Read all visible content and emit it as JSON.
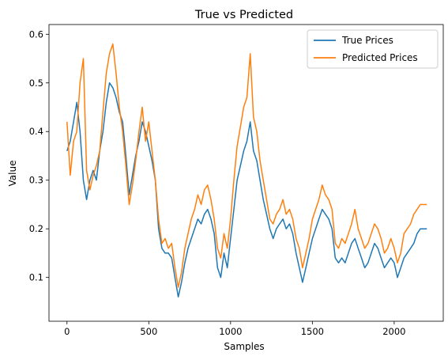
{
  "chart_data": {
    "type": "line",
    "title": "True vs Predicted",
    "xlabel": "Samples",
    "ylabel": "Value",
    "xlim": [
      -110,
      2300
    ],
    "ylim": [
      0.01,
      0.62
    ],
    "xticks": [
      0,
      500,
      1000,
      1500,
      2000
    ],
    "xtick_labels": [
      "0",
      "500",
      "1000",
      "1500",
      "2000"
    ],
    "yticks": [
      0.1,
      0.2,
      0.3,
      0.4,
      0.5,
      0.6
    ],
    "ytick_labels": [
      "0.1",
      "0.2",
      "0.3",
      "0.4",
      "0.5",
      "0.6"
    ],
    "grid": false,
    "legend_position": "top-right",
    "series": [
      {
        "name": "True Prices",
        "color": "#1f77b4",
        "x": [
          0,
          20,
          40,
          60,
          80,
          100,
          120,
          140,
          160,
          180,
          200,
          220,
          240,
          260,
          280,
          300,
          320,
          340,
          360,
          380,
          400,
          420,
          440,
          460,
          480,
          500,
          520,
          540,
          560,
          580,
          600,
          620,
          640,
          660,
          680,
          700,
          720,
          740,
          760,
          780,
          800,
          820,
          840,
          860,
          880,
          900,
          920,
          940,
          960,
          980,
          1000,
          1020,
          1040,
          1060,
          1080,
          1100,
          1120,
          1140,
          1160,
          1180,
          1200,
          1220,
          1240,
          1260,
          1280,
          1300,
          1320,
          1340,
          1360,
          1380,
          1400,
          1420,
          1440,
          1460,
          1480,
          1500,
          1520,
          1540,
          1560,
          1580,
          1600,
          1620,
          1640,
          1660,
          1680,
          1700,
          1720,
          1740,
          1760,
          1780,
          1800,
          1820,
          1840,
          1860,
          1880,
          1900,
          1920,
          1940,
          1960,
          1980,
          2000,
          2020,
          2040,
          2060,
          2080,
          2100,
          2120,
          2140,
          2160,
          2180,
          2200
        ],
        "values": [
          0.36,
          0.38,
          0.42,
          0.46,
          0.4,
          0.3,
          0.26,
          0.3,
          0.32,
          0.3,
          0.36,
          0.4,
          0.46,
          0.5,
          0.49,
          0.47,
          0.44,
          0.42,
          0.35,
          0.27,
          0.31,
          0.35,
          0.38,
          0.42,
          0.4,
          0.37,
          0.34,
          0.3,
          0.2,
          0.16,
          0.15,
          0.15,
          0.14,
          0.1,
          0.06,
          0.09,
          0.13,
          0.16,
          0.18,
          0.2,
          0.22,
          0.21,
          0.23,
          0.24,
          0.22,
          0.19,
          0.12,
          0.1,
          0.15,
          0.12,
          0.18,
          0.24,
          0.3,
          0.33,
          0.36,
          0.38,
          0.42,
          0.36,
          0.34,
          0.3,
          0.26,
          0.23,
          0.2,
          0.18,
          0.2,
          0.21,
          0.22,
          0.2,
          0.21,
          0.19,
          0.15,
          0.12,
          0.09,
          0.12,
          0.15,
          0.18,
          0.2,
          0.22,
          0.24,
          0.23,
          0.22,
          0.2,
          0.14,
          0.13,
          0.14,
          0.13,
          0.15,
          0.17,
          0.18,
          0.16,
          0.14,
          0.12,
          0.13,
          0.15,
          0.17,
          0.16,
          0.14,
          0.12,
          0.13,
          0.14,
          0.13,
          0.1,
          0.12,
          0.14,
          0.15,
          0.16,
          0.17,
          0.19,
          0.2,
          0.2,
          0.2
        ]
      },
      {
        "name": "Predicted Prices",
        "color": "#ff7f0e",
        "x": [
          0,
          20,
          40,
          60,
          80,
          100,
          120,
          140,
          160,
          180,
          200,
          220,
          240,
          260,
          280,
          300,
          320,
          340,
          360,
          380,
          400,
          420,
          440,
          460,
          480,
          500,
          520,
          540,
          560,
          580,
          600,
          620,
          640,
          660,
          680,
          700,
          720,
          740,
          760,
          780,
          800,
          820,
          840,
          860,
          880,
          900,
          920,
          940,
          960,
          980,
          1000,
          1020,
          1040,
          1060,
          1080,
          1100,
          1120,
          1140,
          1160,
          1180,
          1200,
          1220,
          1240,
          1260,
          1280,
          1300,
          1320,
          1340,
          1360,
          1380,
          1400,
          1420,
          1440,
          1460,
          1480,
          1500,
          1520,
          1540,
          1560,
          1580,
          1600,
          1620,
          1640,
          1660,
          1680,
          1700,
          1720,
          1740,
          1760,
          1780,
          1800,
          1820,
          1840,
          1860,
          1880,
          1900,
          1920,
          1940,
          1960,
          1980,
          2000,
          2020,
          2040,
          2060,
          2080,
          2100,
          2120,
          2140,
          2160,
          2180,
          2200
        ],
        "values": [
          0.42,
          0.31,
          0.38,
          0.4,
          0.5,
          0.55,
          0.32,
          0.28,
          0.31,
          0.33,
          0.36,
          0.44,
          0.52,
          0.56,
          0.58,
          0.52,
          0.45,
          0.4,
          0.33,
          0.25,
          0.29,
          0.34,
          0.4,
          0.45,
          0.38,
          0.42,
          0.36,
          0.3,
          0.22,
          0.17,
          0.18,
          0.16,
          0.17,
          0.12,
          0.08,
          0.11,
          0.16,
          0.19,
          0.22,
          0.24,
          0.27,
          0.25,
          0.28,
          0.29,
          0.26,
          0.22,
          0.16,
          0.14,
          0.19,
          0.16,
          0.22,
          0.3,
          0.37,
          0.41,
          0.45,
          0.47,
          0.56,
          0.43,
          0.4,
          0.34,
          0.3,
          0.26,
          0.22,
          0.21,
          0.23,
          0.24,
          0.26,
          0.23,
          0.24,
          0.22,
          0.18,
          0.16,
          0.12,
          0.15,
          0.18,
          0.22,
          0.24,
          0.26,
          0.29,
          0.27,
          0.26,
          0.24,
          0.17,
          0.16,
          0.18,
          0.17,
          0.19,
          0.21,
          0.24,
          0.2,
          0.18,
          0.16,
          0.17,
          0.19,
          0.21,
          0.2,
          0.18,
          0.15,
          0.16,
          0.18,
          0.16,
          0.13,
          0.15,
          0.19,
          0.2,
          0.21,
          0.23,
          0.24,
          0.25,
          0.25,
          0.25
        ]
      }
    ]
  }
}
